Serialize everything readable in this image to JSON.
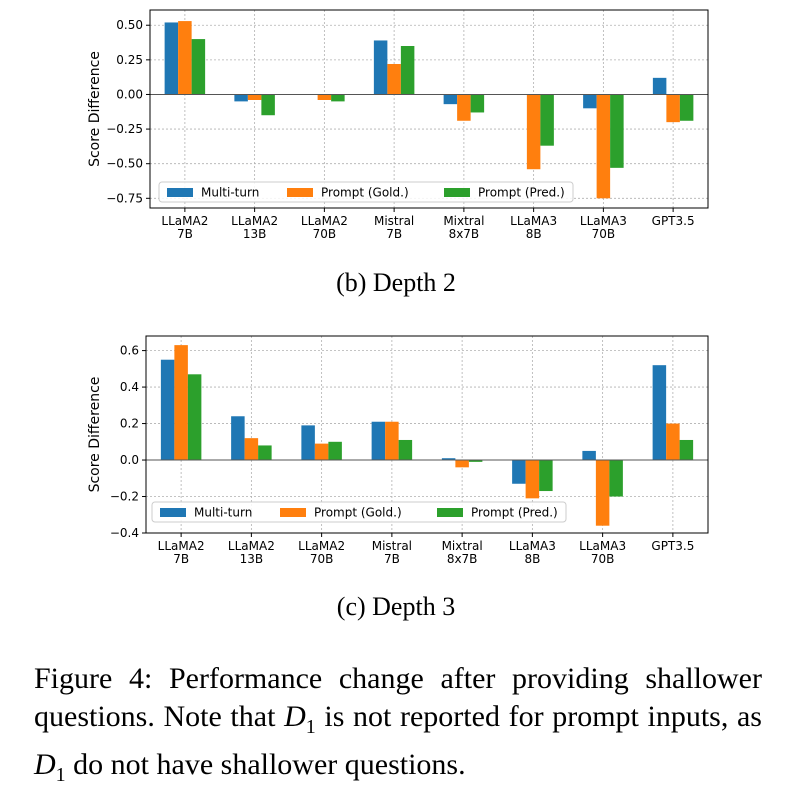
{
  "chart_data": [
    {
      "type": "bar",
      "categories": [
        "LLaMA2\n7B",
        "LLaMA2\n13B",
        "LLaMA2\n70B",
        "Mistral\n7B",
        "Mixtral\n8x7B",
        "LLaMA3\n8B",
        "LLaMA3\n70B",
        "GPT3.5"
      ],
      "series": [
        {
          "name": "Multi-turn",
          "color": "#1f77b4",
          "values": [
            0.52,
            -0.05,
            null,
            0.39,
            -0.07,
            null,
            -0.1,
            0.12
          ]
        },
        {
          "name": "Prompt (Gold.)",
          "color": "#ff7f0e",
          "values": [
            0.53,
            -0.04,
            -0.04,
            0.22,
            -0.19,
            -0.54,
            -0.75,
            -0.2
          ]
        },
        {
          "name": "Prompt (Pred.)",
          "color": "#2ca02c",
          "values": [
            0.4,
            -0.15,
            -0.05,
            0.35,
            -0.13,
            -0.37,
            -0.53,
            -0.19
          ]
        }
      ],
      "ylabel": "Score Difference",
      "ylim": [
        -0.82,
        0.61
      ],
      "yticks": [
        "0.50",
        "0.25",
        "0.00",
        "−0.25",
        "−0.50",
        "−0.75"
      ],
      "ytick_values": [
        0.5,
        0.25,
        0.0,
        -0.25,
        -0.5,
        -0.75
      ],
      "grid": true,
      "legend_position": "lower-center",
      "caption": "(b) Depth 2"
    },
    {
      "type": "bar",
      "categories": [
        "LLaMA2\n7B",
        "LLaMA2\n13B",
        "LLaMA2\n70B",
        "Mistral\n7B",
        "Mixtral\n8x7B",
        "LLaMA3\n8B",
        "LLaMA3\n70B",
        "GPT3.5"
      ],
      "series": [
        {
          "name": "Multi-turn",
          "color": "#1f77b4",
          "values": [
            0.55,
            0.24,
            0.19,
            0.21,
            0.01,
            -0.13,
            0.05,
            0.52
          ]
        },
        {
          "name": "Prompt (Gold.)",
          "color": "#ff7f0e",
          "values": [
            0.63,
            0.12,
            0.09,
            0.21,
            -0.04,
            -0.21,
            -0.36,
            0.2
          ]
        },
        {
          "name": "Prompt (Pred.)",
          "color": "#2ca02c",
          "values": [
            0.47,
            0.08,
            0.1,
            0.11,
            -0.01,
            -0.17,
            -0.2,
            0.11
          ]
        }
      ],
      "ylabel": "Score Difference",
      "ylim": [
        -0.4,
        0.68
      ],
      "yticks": [
        "0.6",
        "0.4",
        "0.2",
        "0.0",
        "−0.2",
        "−0.4"
      ],
      "ytick_values": [
        0.6,
        0.4,
        0.2,
        0.0,
        -0.2,
        -0.4
      ],
      "grid": true,
      "legend_position": "lower-center",
      "caption": "(c) Depth 3"
    }
  ],
  "figure_caption": {
    "prefix": "Figure 4: Performance change after providing shallower questions. Note that ",
    "d_symbol": "D",
    "d_subscript": "1",
    "middle": " is not reported for prompt inputs, as ",
    "suffix": " do not have shallower questions."
  }
}
